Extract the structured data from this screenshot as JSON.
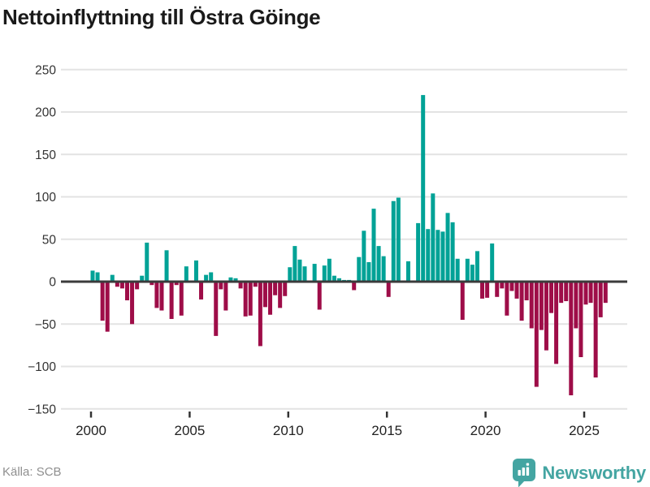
{
  "title": "Nettoinflyttning till Östra Göinge",
  "footer": {
    "source": "Källa: SCB",
    "brand": "Newsworthy"
  },
  "colors": {
    "positive_bar": "#00a296",
    "negative_bar": "#9e0d48",
    "gridline": "#e3e3e3",
    "zero_line": "#3b3b3b",
    "axis_label": "#333333",
    "year_label": "#222222",
    "title_text": "#1a1a1a",
    "source_text": "#8f8f8f",
    "logo_teal": "#44a5a2"
  },
  "chart_data": {
    "type": "bar",
    "title": "Nettoinflyttning till Östra Göinge",
    "xlabel": "",
    "ylabel": "",
    "ylim": [
      -150,
      250
    ],
    "y_ticks": [
      250,
      200,
      150,
      100,
      50,
      0,
      -50,
      -100,
      -150
    ],
    "x_tick_labels": [
      "2000",
      "2005",
      "2010",
      "2015",
      "2020",
      "2025"
    ],
    "grid": "horizontal",
    "legend": "none",
    "frequency": "quarterly",
    "start_period": "2000 Q1",
    "end_period": "2026 Q1",
    "series_name": "Nettoinflyttning (personer per kvartal)",
    "values": [
      13,
      11,
      -46,
      -59,
      8,
      -6,
      -8,
      -22,
      -50,
      -9,
      7,
      46,
      -4,
      -31,
      -34,
      37,
      -44,
      -4,
      -40,
      18,
      0,
      25,
      -21,
      8,
      11,
      -64,
      -9,
      -34,
      5,
      4,
      -8,
      -41,
      -40,
      -6,
      -76,
      -30,
      -39,
      -16,
      -31,
      -17,
      17,
      42,
      26,
      18,
      0,
      21,
      -33,
      19,
      27,
      7,
      4,
      2,
      2,
      -10,
      29,
      60,
      23,
      86,
      42,
      30,
      -18,
      95,
      99,
      0,
      24,
      0,
      69,
      220,
      62,
      104,
      61,
      59,
      81,
      70,
      27,
      -45,
      27,
      20,
      36,
      -20,
      -19,
      45,
      -18,
      -8,
      -40,
      -11,
      -20,
      -46,
      -22,
      -55,
      -124,
      -57,
      -81,
      -37,
      -97,
      -25,
      -23,
      -134,
      -55,
      -89,
      -27,
      -25,
      -113,
      -42,
      -25
    ]
  }
}
